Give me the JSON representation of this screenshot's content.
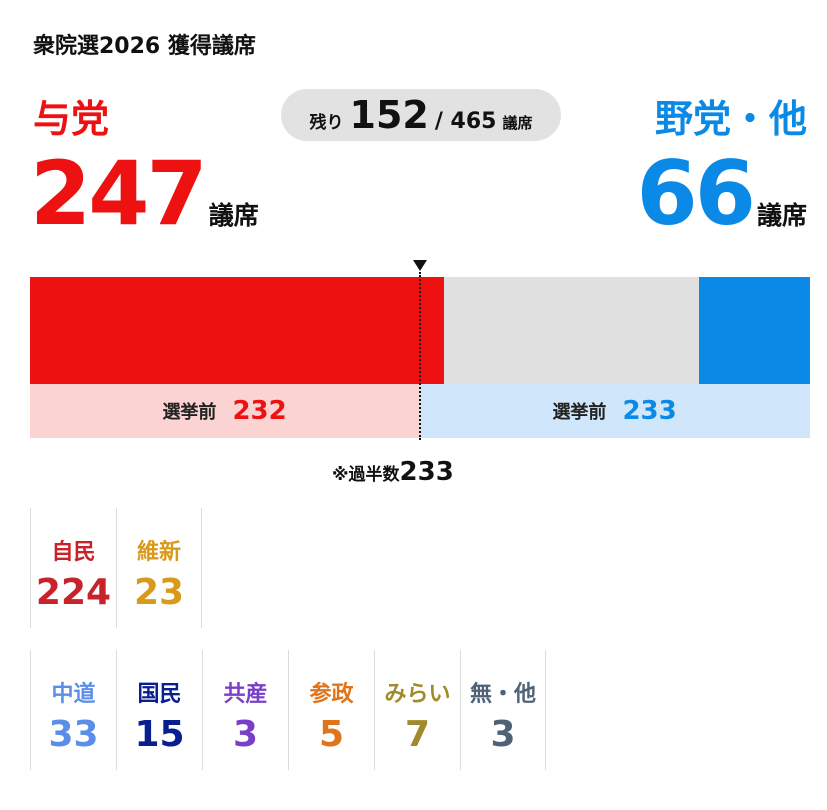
{
  "title": "衆院選2026 獲得議席",
  "ruling": {
    "label": "与党",
    "seats": 247,
    "seats_unit": "議席",
    "color": "#ee1111"
  },
  "opposition": {
    "label": "野党・他",
    "seats": 66,
    "seats_unit": "議席",
    "color": "#0a8ae6"
  },
  "remaining": {
    "label": "残り",
    "value": 152,
    "total": "/ 465",
    "unit": "議席"
  },
  "total_seats": 465,
  "before_election": {
    "ruling": {
      "label": "選挙前",
      "value": 232
    },
    "opposition": {
      "label": "選挙前",
      "value": 233
    }
  },
  "majority": {
    "label": "※過半数",
    "value": 233
  },
  "ruling_parties": [
    {
      "name": "自民",
      "seats": 224,
      "color": "#c8232b"
    },
    {
      "name": "維新",
      "seats": 23,
      "color": "#d99a1c"
    }
  ],
  "opposition_parties": [
    {
      "name": "中道",
      "seats": 33,
      "color": "#5b8ee8"
    },
    {
      "name": "国民",
      "seats": 15,
      "color": "#0a1f8f"
    },
    {
      "name": "共産",
      "seats": 3,
      "color": "#7a3fc8"
    },
    {
      "name": "参政",
      "seats": 5,
      "color": "#e0741a"
    },
    {
      "name": "みらい",
      "seats": 7,
      "color": "#a08a2a"
    },
    {
      "name": "無・他",
      "seats": 3,
      "color": "#4f6377"
    }
  ]
}
